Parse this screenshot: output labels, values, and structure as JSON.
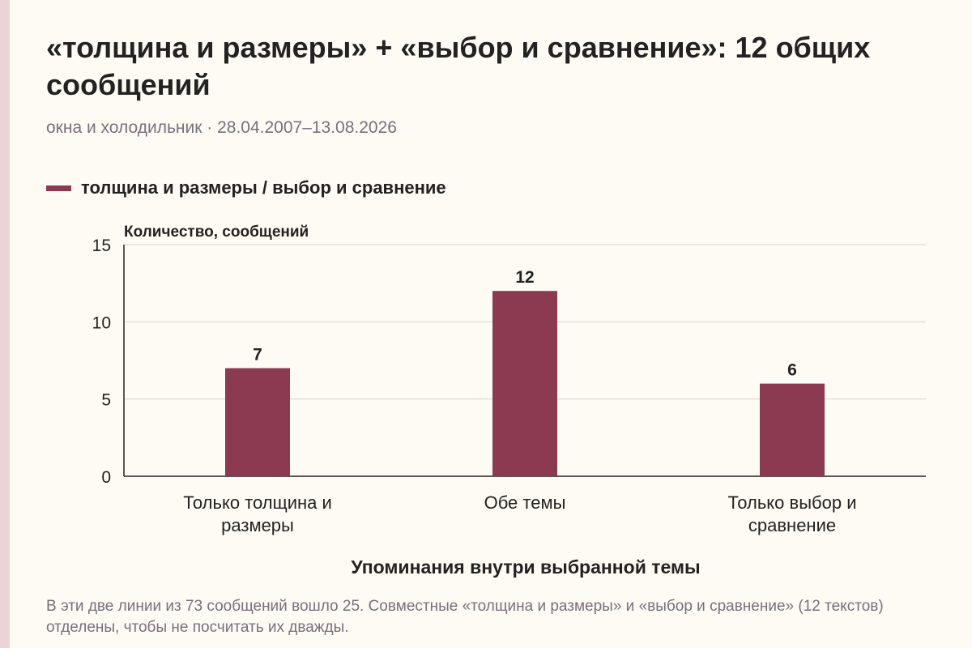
{
  "header": {
    "title": "«толщина и размеры» + «выбор и сравнение»: 12 общих сообщений",
    "subtitle": "окна и холодильник · 28.04.2007–13.08.2026"
  },
  "legend": {
    "label": "толщина и размеры / выбор и сравнение",
    "color": "#8b3a52"
  },
  "chart_data": {
    "type": "bar",
    "categories": [
      [
        "Только толщина и",
        "размеры"
      ],
      [
        "Обе темы"
      ],
      [
        "Только выбор и",
        "сравнение"
      ]
    ],
    "series": [
      {
        "name": "толщина и размеры / выбор и сравнение",
        "values": [
          7,
          12,
          6
        ],
        "color": "#8b3a52"
      }
    ],
    "ylabel": "Количество, сообщений",
    "xlabel": "Упоминания внутри выбранной темы",
    "ylim": [
      0,
      15
    ],
    "yticks": [
      0,
      5,
      10,
      15
    ],
    "grid": true,
    "data_labels": true
  },
  "footnote": "В эти две линии из 73 сообщений вошло 25. Совместные «толщина и размеры» и «выбор и сравнение» (12 текстов) отделены, чтобы не посчитать их дважды."
}
